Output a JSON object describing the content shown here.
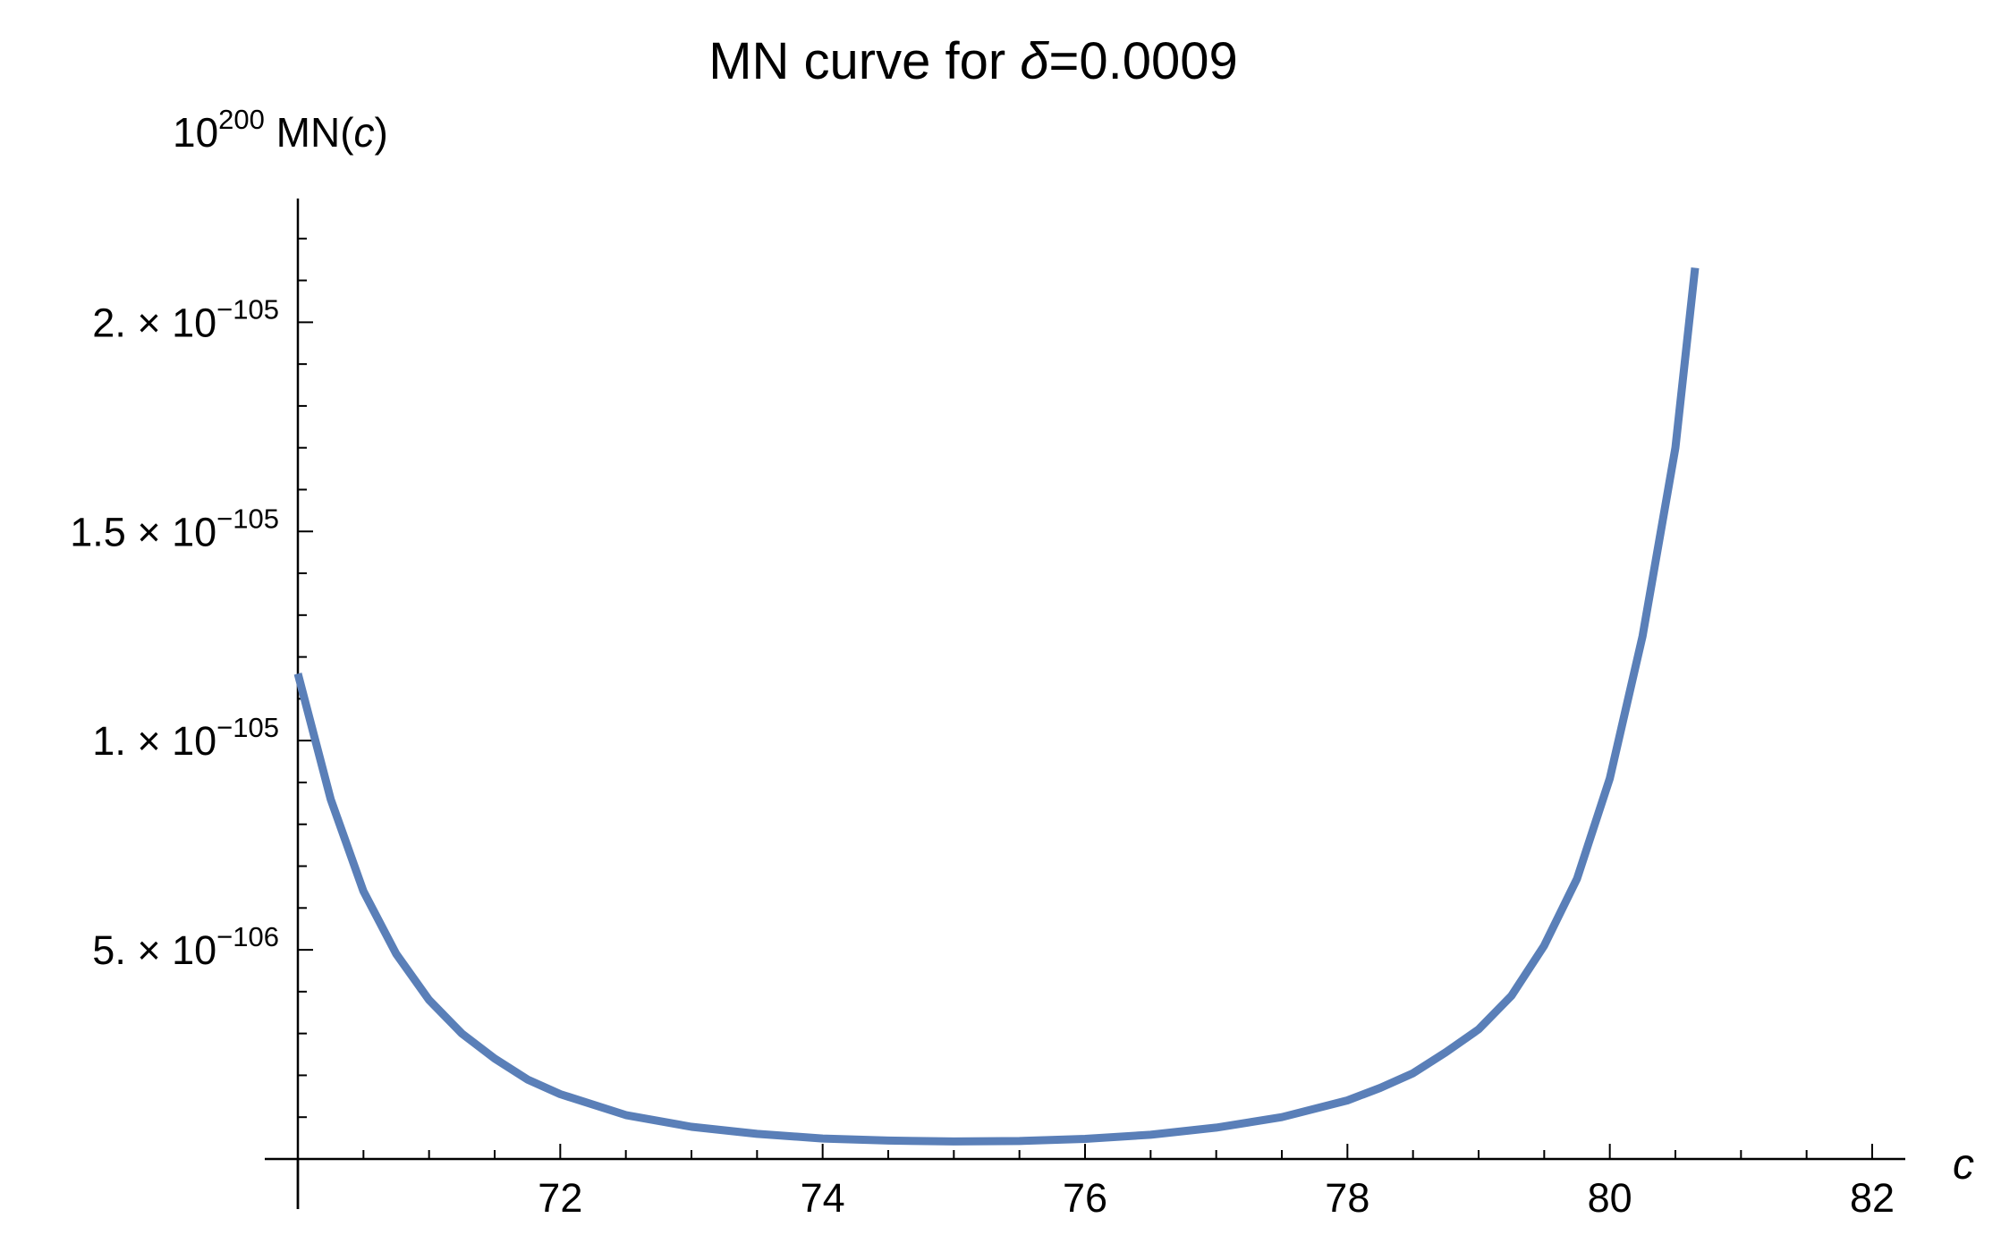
{
  "chart_data": {
    "type": "line",
    "title": "MN curve for δ=0.0009",
    "title_prefix": "MN curve for ",
    "title_symbol": "δ",
    "title_suffix": "=0.0009",
    "ylabel": "10^200 MN(c)",
    "ylabel_base": "10",
    "ylabel_exp": "200",
    "ylabel_func": " MN(",
    "ylabel_var": "c",
    "ylabel_close": ")",
    "xlabel": "c",
    "xlim": [
      70,
      82.5
    ],
    "ylim": [
      0,
      2.3e-105
    ],
    "x_ticks": [
      {
        "value": 72,
        "label": "72"
      },
      {
        "value": 74,
        "label": "74"
      },
      {
        "value": 76,
        "label": "76"
      },
      {
        "value": 78,
        "label": "78"
      },
      {
        "value": 80,
        "label": "80"
      },
      {
        "value": 82,
        "label": "82"
      }
    ],
    "y_ticks": [
      {
        "value": 5e-106,
        "mantissa": "5.",
        "times": "×",
        "base": "10",
        "exp": "−106"
      },
      {
        "value": 1e-105,
        "mantissa": "1.",
        "times": "×",
        "base": "10",
        "exp": "−105"
      },
      {
        "value": 1.5e-105,
        "mantissa": "1.5",
        "times": "×",
        "base": "10",
        "exp": "−105"
      },
      {
        "value": 2e-105,
        "mantissa": "2.",
        "times": "×",
        "base": "10",
        "exp": "−105"
      }
    ],
    "grid": false,
    "series": [
      {
        "color": "#5a7fb8",
        "x": [
          70.0,
          70.25,
          70.5,
          70.75,
          71.0,
          71.25,
          71.5,
          71.75,
          72.0,
          72.5,
          73.0,
          73.5,
          74.0,
          74.5,
          75.0,
          75.5,
          76.0,
          76.5,
          77.0,
          77.5,
          78.0,
          78.25,
          78.5,
          78.75,
          79.0,
          79.25,
          79.5,
          79.75,
          80.0,
          80.25,
          80.5,
          80.65
        ],
        "y": [
          1.16e-105,
          8.6e-106,
          6.4e-106,
          4.9e-106,
          3.8e-106,
          3e-106,
          2.4e-106,
          1.9e-106,
          1.55e-106,
          1.05e-106,
          7.7e-107,
          6e-107,
          4.9e-107,
          4.4e-107,
          4.2e-107,
          4.3e-107,
          4.8e-107,
          5.8e-107,
          7.5e-107,
          1e-106,
          1.4e-106,
          1.7e-106,
          2.05e-106,
          2.55e-106,
          3.1e-106,
          3.9e-106,
          5.1e-106,
          6.7e-106,
          9.1e-106,
          1.25e-105,
          1.7e-105,
          2.13e-105
        ]
      }
    ]
  }
}
